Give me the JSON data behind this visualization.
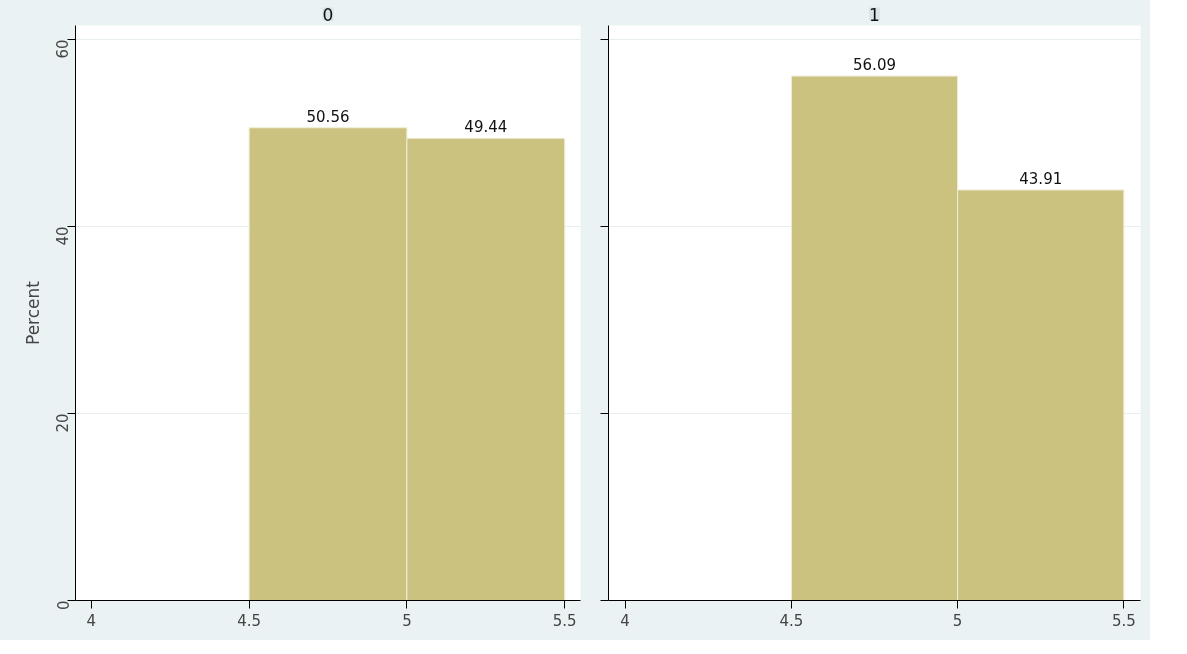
{
  "chart_data": [
    {
      "type": "histogram",
      "title": "0",
      "ylabel": "Percent",
      "bins": [
        4.5,
        5,
        5.5
      ],
      "values": [
        50.56,
        49.44
      ],
      "color": "#cbc27f",
      "data_labels": true,
      "xlim": [
        3.95,
        5.55
      ],
      "xticks": [
        4,
        4.5,
        5,
        5.5
      ],
      "ylim": [
        0,
        61.5
      ],
      "yticks": [
        0,
        20,
        40,
        60
      ],
      "grid": "y"
    },
    {
      "type": "histogram",
      "title": "1",
      "bins": [
        4.5,
        5,
        5.5
      ],
      "values": [
        56.09,
        43.91
      ],
      "color": "#cbc27f",
      "data_labels": true,
      "xlim": [
        3.95,
        5.55
      ],
      "xticks": [
        4,
        4.5,
        5,
        5.5
      ],
      "ylim": [
        0,
        61.5
      ],
      "yticks": [
        0,
        20,
        40,
        60
      ],
      "grid": "y",
      "tick_labels": "x"
    }
  ]
}
